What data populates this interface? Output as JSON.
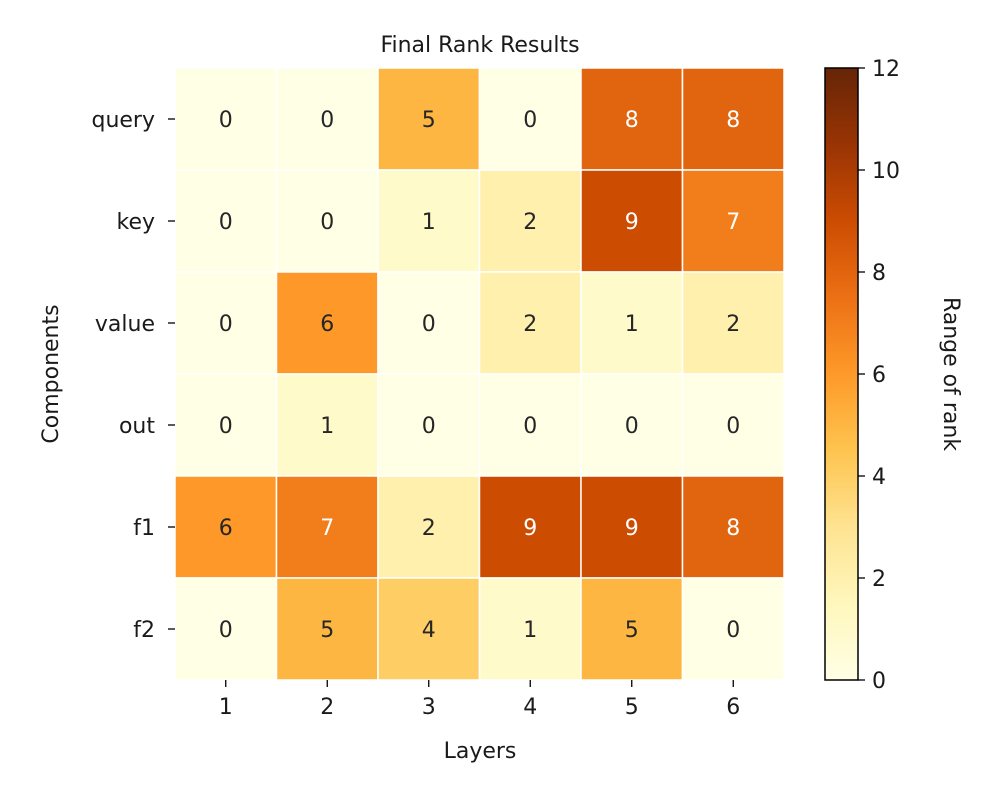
{
  "chart_data": {
    "type": "heatmap",
    "title": "Final Rank Results",
    "xlabel": "Layers",
    "ylabel": "Components",
    "x_categories": [
      "1",
      "2",
      "3",
      "4",
      "5",
      "6"
    ],
    "y_categories": [
      "query",
      "key",
      "value",
      "out",
      "f1",
      "f2"
    ],
    "values": [
      [
        0,
        0,
        5,
        0,
        8,
        8
      ],
      [
        0,
        0,
        1,
        2,
        9,
        7
      ],
      [
        0,
        6,
        0,
        2,
        1,
        2
      ],
      [
        0,
        1,
        0,
        0,
        0,
        0
      ],
      [
        6,
        7,
        2,
        9,
        9,
        8
      ],
      [
        0,
        5,
        4,
        1,
        5,
        0
      ]
    ],
    "colorbar": {
      "label": "Range of rank",
      "vmin": 0,
      "vmax": 12,
      "ticks": [
        0,
        2,
        4,
        6,
        8,
        10,
        12
      ]
    },
    "colormap": "YlOrBr",
    "colormap_stops": [
      "#ffffe5",
      "#fff7bc",
      "#fee391",
      "#fec44f",
      "#fe9929",
      "#ec7014",
      "#cc4c02",
      "#993404",
      "#662506"
    ],
    "cell_border_color": "#ffffff",
    "label_color_dark": "#262626",
    "label_color_light": "#ffffff",
    "grid": false
  }
}
